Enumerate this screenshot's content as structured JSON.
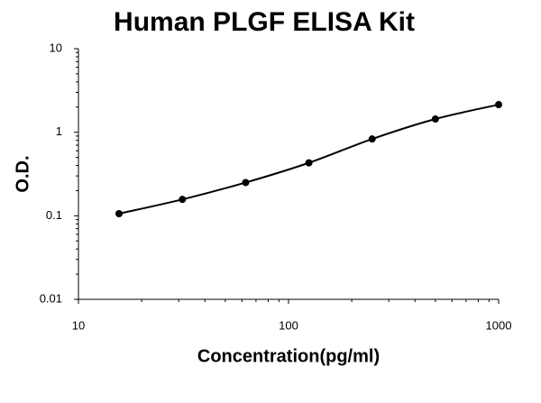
{
  "chart_data": {
    "type": "scatter",
    "title": "Human PLGF ELISA Kit",
    "x_label": "Concentration(pg/ml)",
    "y_label": "O.D.",
    "log_x": true,
    "log_y": true,
    "curve": "smooth",
    "grid": false,
    "xlim": [
      10,
      1000
    ],
    "ylim": [
      0.01,
      10
    ],
    "xticks": [
      10,
      100,
      1000
    ],
    "yticks": [
      0.01,
      0.1,
      1,
      10
    ],
    "series": [
      {
        "color": "#000000",
        "x": [
          15.6,
          31.25,
          62.5,
          125,
          250,
          500,
          1000
        ],
        "values": [
          0.106,
          0.157,
          0.25,
          0.43,
          0.83,
          1.44,
          2.14
        ]
      }
    ]
  }
}
